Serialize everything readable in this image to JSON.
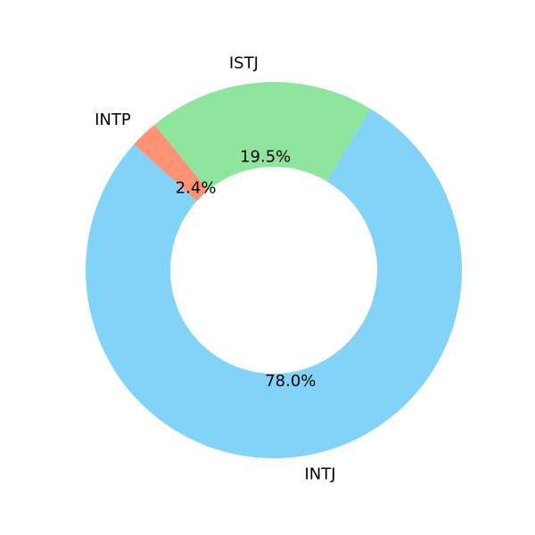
{
  "chart_data": {
    "type": "pie",
    "donut": true,
    "labels": [
      "INTJ",
      "ISTJ",
      "INTP"
    ],
    "values": [
      78.0,
      19.5,
      2.4
    ],
    "percent_labels": [
      "78.0%",
      "19.5%",
      "2.4%"
    ],
    "colors": [
      "#81d4f7",
      "#8ee59e",
      "#ff9274"
    ],
    "title": "",
    "legend": "none"
  }
}
